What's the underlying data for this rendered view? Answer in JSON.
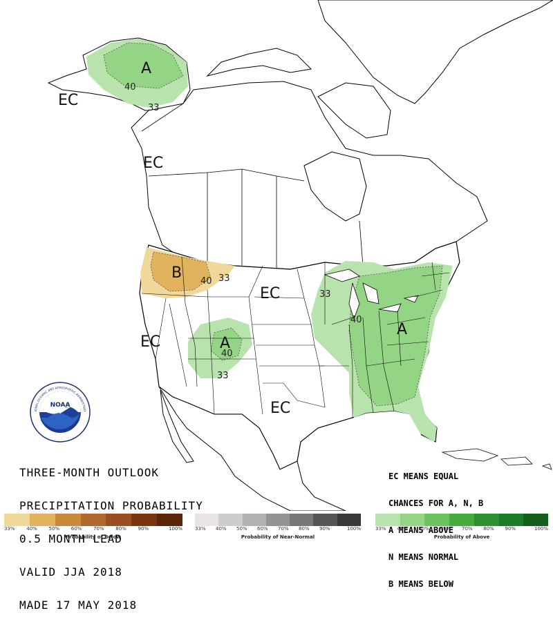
{
  "title": {
    "lines": [
      "THREE-MONTH OUTLOOK",
      "PRECIPITATION PROBABILITY",
      "0.5 MONTH LEAD",
      "VALID JJA 2018",
      "MADE 17 MAY 2018"
    ]
  },
  "legend_note": {
    "lines": [
      "EC MEANS EQUAL",
      "CHANCES FOR A, N, B",
      "A MEANS ABOVE",
      "N MEANS NORMAL",
      "B MEANS BELOW"
    ]
  },
  "map_labels": {
    "ec_alaska": "EC",
    "ec_bc": "EC",
    "ec_plains": "EC",
    "ec_west": "EC",
    "ec_south": "EC",
    "a_alaska": "A",
    "b_northwest": "B",
    "a_southwest": "A",
    "a_east": "A",
    "c40_alaska": "40",
    "c33_alaska": "33",
    "c40_nw": "40",
    "c33_nw": "33",
    "c40_sw": "40",
    "c33_sw": "33",
    "c33_east": "33",
    "c40_east": "40"
  },
  "logo": {
    "icon": "noaa-logo",
    "text": "NOAA",
    "ring_text": "NATIONAL OCEANIC AND ATMOSPHERIC ADMINISTRATION",
    "ring_text_bottom": "U.S. DEPARTMENT OF COMMERCE"
  },
  "colors": {
    "below": [
      "#f0d79a",
      "#e1b35c",
      "#c98b3a",
      "#b0682b",
      "#9a4e22",
      "#7b3410",
      "#5a2408"
    ],
    "normal": [
      "#e9e4e2",
      "#cfcccc",
      "#b3b1b1",
      "#949494",
      "#777777",
      "#565656",
      "#383838"
    ],
    "above": [
      "#b8e3ad",
      "#93d584",
      "#6cc25e",
      "#45ab3c",
      "#2d9332",
      "#1d7a27",
      "#125e1a"
    ],
    "map_above_33": "#b8e3ad",
    "map_above_40": "#93d584",
    "map_below_33": "#f0d79a",
    "map_below_40": "#e1b35c"
  },
  "scales": {
    "below": {
      "ticks": [
        "33%",
        "40%",
        "50%",
        "60%",
        "70%",
        "80%",
        "90%",
        "100%"
      ],
      "title": "Probability of Below"
    },
    "normal": {
      "ticks": [
        "33%",
        "40%",
        "50%",
        "60%",
        "70%",
        "80%",
        "90%",
        "100%"
      ],
      "title": "Probability of Near-Normal"
    },
    "above": {
      "ticks": [
        "33%",
        "40%",
        "50%",
        "60%",
        "70%",
        "80%",
        "90%",
        "100%"
      ],
      "title": "Probability of Above"
    }
  }
}
